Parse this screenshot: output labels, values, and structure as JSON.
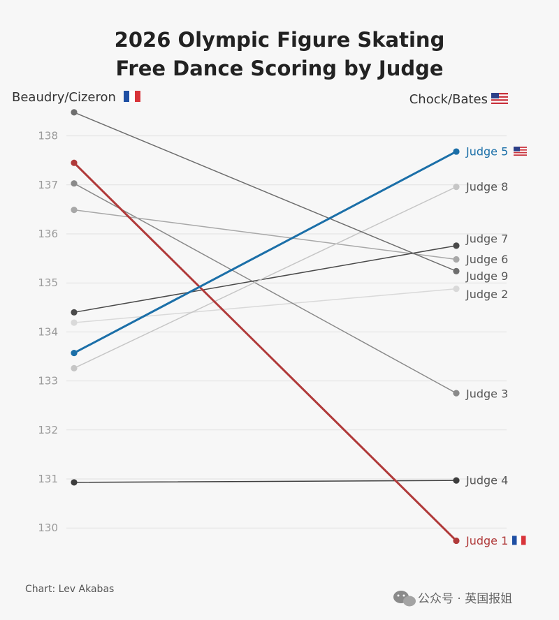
{
  "chart_data": {
    "type": "line",
    "title_lines": [
      "2026 Olympic Figure Skating",
      "Free Dance Scoring by Judge"
    ],
    "x": [
      "Beaudry/Cizeron",
      "Chock/Bates"
    ],
    "left_label": "Beaudry/Cizeron",
    "right_label": "Chock/Bates",
    "y_ticks": [
      130,
      131,
      132,
      133,
      134,
      135,
      136,
      137,
      138
    ],
    "ylim": [
      129.5,
      138.5
    ],
    "grid": true,
    "series": [
      {
        "name": "Judge 1",
        "flag": "france",
        "values": [
          137.45,
          129.74
        ],
        "color": "#b03a3a",
        "emphasis": true
      },
      {
        "name": "Judge 2",
        "flag": "",
        "values": [
          134.19,
          134.88
        ],
        "color": "#d9d9d9",
        "emphasis": false
      },
      {
        "name": "Judge 3",
        "flag": "",
        "values": [
          137.03,
          132.75
        ],
        "color": "#8a8a8a",
        "emphasis": false
      },
      {
        "name": "Judge 4",
        "flag": "",
        "values": [
          130.93,
          130.97
        ],
        "color": "#3d3d3d",
        "emphasis": false
      },
      {
        "name": "Judge 5",
        "flag": "usa",
        "values": [
          133.57,
          137.68
        ],
        "color": "#1b6fa8",
        "emphasis": true
      },
      {
        "name": "Judge 6",
        "flag": "",
        "values": [
          136.49,
          135.48
        ],
        "color": "#a8a8a8",
        "emphasis": false
      },
      {
        "name": "Judge 7",
        "flag": "",
        "values": [
          134.4,
          135.76
        ],
        "color": "#4a4a4a",
        "emphasis": false
      },
      {
        "name": "Judge 8",
        "flag": "",
        "values": [
          133.26,
          136.96
        ],
        "color": "#c6c6c6",
        "emphasis": false
      },
      {
        "name": "Judge 9",
        "flag": "",
        "values": [
          138.48,
          135.24
        ],
        "color": "#6e6e6e",
        "emphasis": false
      }
    ]
  },
  "credit": "Chart: Lev Akabas",
  "watermark": "公众号 · 英国报姐"
}
